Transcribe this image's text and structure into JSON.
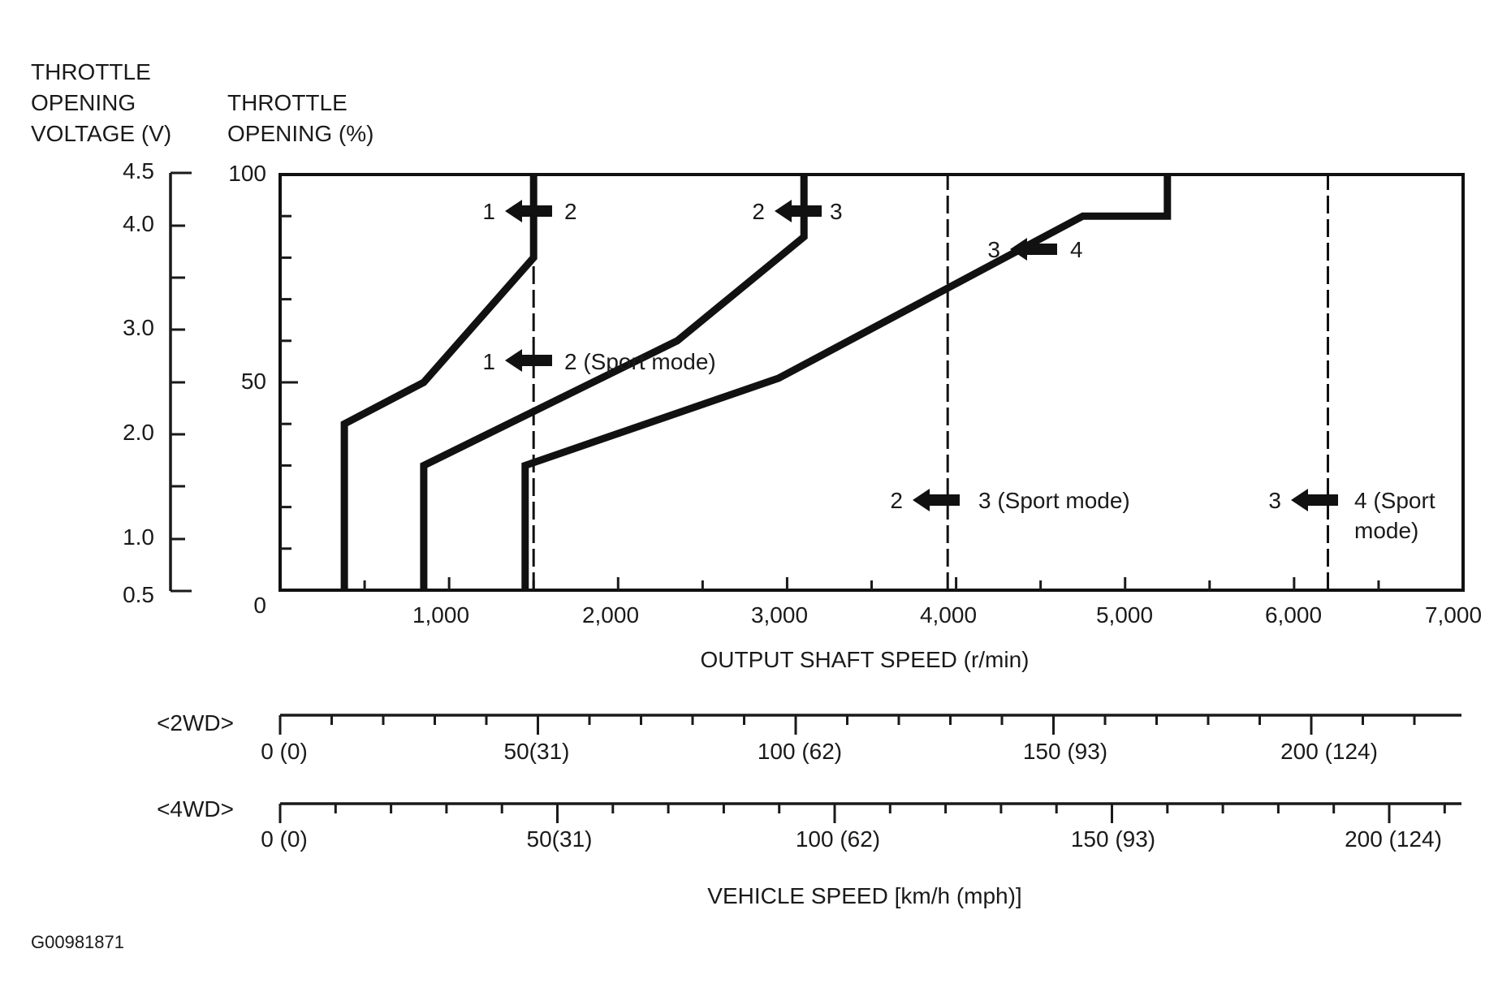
{
  "figure_id": "G00981871",
  "left_axis": {
    "voltage_title_lines": [
      "THROTTLE",
      "OPENING",
      "VOLTAGE (V)"
    ],
    "voltage_ticks": [
      "4.5",
      "4.0",
      "3.0",
      "2.0",
      "1.0",
      "0.5"
    ],
    "opening_title_lines": [
      "THROTTLE",
      "OPENING (%)"
    ],
    "opening_ticks": [
      "100",
      "50",
      "0"
    ]
  },
  "x_axis": {
    "title": "OUTPUT SHAFT SPEED (r/min)",
    "ticks": [
      "1,000",
      "2,000",
      "3,000",
      "4,000",
      "5,000",
      "6,000",
      "7,000"
    ]
  },
  "speed_scales": [
    {
      "label": "<2WD>",
      "ticks": [
        "0 (0)",
        "50(31)",
        "100 (62)",
        "150 (93)",
        "200 (124)"
      ],
      "kmh": [
        0,
        50,
        100,
        150,
        200
      ]
    },
    {
      "label": "<4WD>",
      "ticks": [
        "0 (0)",
        "50(31)",
        "100 (62)",
        "150 (93)",
        "200 (124)"
      ],
      "kmh": [
        0,
        50,
        100,
        150,
        200
      ]
    }
  ],
  "vehicle_speed_title": "VEHICLE SPEED [km/h (mph)]",
  "annotations": [
    {
      "from": "1",
      "to": "2",
      "suffix": ""
    },
    {
      "from": "2",
      "to": "3",
      "suffix": ""
    },
    {
      "from": "3",
      "to": "4",
      "suffix": ""
    },
    {
      "from": "1",
      "to": "2 (Sport mode)",
      "suffix": ""
    },
    {
      "from": "2",
      "to": "3 (Sport mode)",
      "suffix": ""
    },
    {
      "from": "3",
      "to": "4 (Sport",
      "suffix": "mode)"
    }
  ],
  "chart_data": {
    "type": "line",
    "title": "",
    "xlabel": "OUTPUT SHAFT SPEED (r/min)",
    "ylabel": "THROTTLE OPENING (%)",
    "xlim": [
      0,
      7000
    ],
    "ylim": [
      0,
      100
    ],
    "series": [
      {
        "shift": "1 ← 2",
        "style": "solid",
        "points": [
          [
            380,
            0
          ],
          [
            380,
            40
          ],
          [
            850,
            50
          ],
          [
            1500,
            80
          ],
          [
            1500,
            100
          ]
        ]
      },
      {
        "shift": "2 ← 3",
        "style": "solid",
        "points": [
          [
            850,
            0
          ],
          [
            850,
            30
          ],
          [
            2350,
            60
          ],
          [
            3100,
            85
          ],
          [
            3100,
            100
          ]
        ]
      },
      {
        "shift": "3 ← 4",
        "style": "solid",
        "points": [
          [
            1450,
            0
          ],
          [
            1450,
            30
          ],
          [
            2950,
            51
          ],
          [
            4750,
            90
          ],
          [
            5250,
            90
          ],
          [
            5250,
            100
          ]
        ]
      },
      {
        "shift": "1 ← 2 (Sport mode)",
        "style": "dashed",
        "points": [
          [
            1500,
            0
          ],
          [
            1500,
            100
          ]
        ]
      },
      {
        "shift": "2 ← 3 (Sport mode)",
        "style": "dashed",
        "points": [
          [
            3950,
            0
          ],
          [
            3950,
            100
          ]
        ]
      },
      {
        "shift": "3 ← 4 (Sport mode)",
        "style": "dashed",
        "points": [
          [
            6200,
            0
          ],
          [
            6200,
            100
          ]
        ]
      }
    ],
    "voltage_scale": {
      "min_v": 0.5,
      "max_v": 4.5
    }
  }
}
